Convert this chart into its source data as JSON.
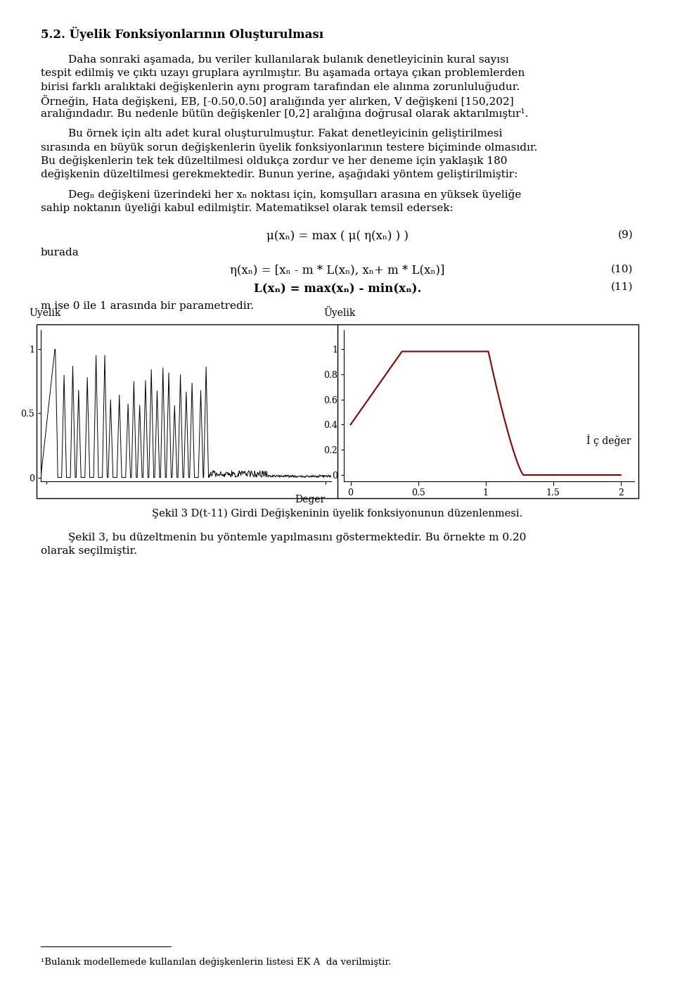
{
  "bg_color": "#ffffff",
  "text_color": "#000000",
  "left_curve_color": "#000000",
  "right_curve_color": "#8B0000",
  "title": "5.2. Üyelik Fonksiyonlarının Oluşturulması",
  "p1_lines": [
    "        Daha sonraki aşamada, bu veriler kullanılarak bulanık denetleyicinin kural sayısı",
    "tespit edilmiş ve çıktı uzayı gruplara ayrılmıştır. Bu aşamada ortaya çıkan problemlerden",
    "birisi farklı aralıktaki değişkenlerin aynı program tarafından ele alınma zorunluluğudur.",
    "Örneğin, Hata değişkeni, EB, [-0.50,0.50] aralığında yer alırken, V değişkeni [150,202]",
    "aralığındadır. Bu nedenle bütün değişkenler [0,2] aralığına doğrusal olarak aktarılmıştır¹."
  ],
  "p2_lines": [
    "        Bu örnek için altı adet kural oluşturulmuştur. Fakat denetleyicinin geliştirilmesi",
    "sırasında en büyük sorun değişkenlerin üyelik fonksiyonlarının testere biçiminde olmasıdır.",
    "Bu değişkenlerin tek tek düzeltilmesi oldukça zordur ve her deneme için yaklaşık 180",
    "değişkenin düzeltilmesi gerekmektedir. Bunun yerine, aşağıdaki yöntem geliştirilmiştir:"
  ],
  "p3_lines": [
    "        Degₙ değişkeni üzerindeki her xₙ noktası için, komşulları arasına en yüksek üyeliğe",
    "sahip noktanın üyeliği kabul edilmiştir. Matematiksel olarak temsil edersek:"
  ],
  "eq9": "μ(xₙ) = max ( μ( η(xₙ) ) )",
  "eq9_num": "(9)",
  "burada": "burada",
  "eq10": "η(xₙ) = [xₙ - m * L(xₙ), xₙ+ m * L(xₙ)]",
  "eq10_num": "(10)",
  "eq11": "L(xₙ) = max(xₙ) - min(xₙ).",
  "eq11_num": "(11)",
  "m_line": "m ise 0 ile 1 arasında bir parametredir.",
  "left_ylabel": "Uyelik",
  "left_xlabel": "Deger",
  "right_ylabel": "Üyelik",
  "right_xlabel": "İ ç değer",
  "caption": "Şekil 3 D(t-11) Girdi Değişkeninin üyelik fonksiyonunun düzenlenmesi.",
  "p4_lines": [
    "        Şekil 3, bu düzeltmenin bu yöntemle yapılmasını göstermektedir. Bu örnekte m 0.20",
    "olarak seçilmiştir."
  ],
  "footnote": "¹Bulanık modellemede kullanılan değişkenlerin listesi EK A  da verilmiştir."
}
